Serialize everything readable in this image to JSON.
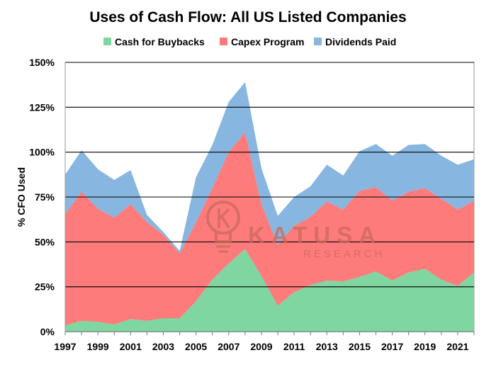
{
  "chart_data": {
    "type": "area",
    "stacked": true,
    "title": "Uses of Cash Flow: All US Listed Companies",
    "ylabel": "% CFO Used",
    "xlabel": "",
    "ylim": [
      0,
      150
    ],
    "y_ticks": [
      0,
      25,
      50,
      75,
      100,
      125,
      150
    ],
    "y_tick_labels": [
      "0%",
      "25%",
      "50%",
      "75%",
      "100%",
      "125%",
      "150%"
    ],
    "x_tick_labels": [
      "1997",
      "1999",
      "2001",
      "2003",
      "2005",
      "2007",
      "2009",
      "2011",
      "2013",
      "2015",
      "2017",
      "2019",
      "2021"
    ],
    "grid": true,
    "legend_position": "top",
    "x": [
      1997,
      1998,
      1999,
      2000,
      2001,
      2002,
      2003,
      2004,
      2005,
      2006,
      2007,
      2008,
      2009,
      2010,
      2011,
      2012,
      2013,
      2014,
      2015,
      2016,
      2017,
      2018,
      2019,
      2020,
      2021,
      2022
    ],
    "series": [
      {
        "name": "Cash for Buybacks",
        "color": "#7fd6a0",
        "values": [
          3.5,
          6,
          5.5,
          4,
          7,
          6,
          7.5,
          7.5,
          17,
          29,
          38,
          46,
          31,
          14.5,
          22,
          26,
          28.5,
          28,
          30.5,
          33.5,
          28.5,
          33,
          35,
          29,
          25.5,
          33
        ]
      },
      {
        "name": "Capex Program",
        "color": "#fe7b7b",
        "values": [
          62,
          72,
          63,
          59.5,
          64,
          55,
          46.5,
          36,
          44,
          51,
          62,
          65,
          40,
          34,
          37,
          38,
          44,
          40,
          48,
          47,
          44.5,
          45,
          45,
          45,
          42.5,
          40
        ]
      },
      {
        "name": "Dividends Paid",
        "color": "#87b6e0",
        "values": [
          22,
          23,
          22,
          21,
          19,
          4,
          1.5,
          1.5,
          25,
          24,
          28,
          28,
          20,
          16,
          16,
          17,
          20.5,
          19,
          22,
          24,
          25,
          26,
          24.5,
          24,
          25,
          23
        ]
      }
    ]
  },
  "watermark": {
    "brand": "KATUSA",
    "sub": "RESEARCH",
    "color": "#c96a5a"
  }
}
